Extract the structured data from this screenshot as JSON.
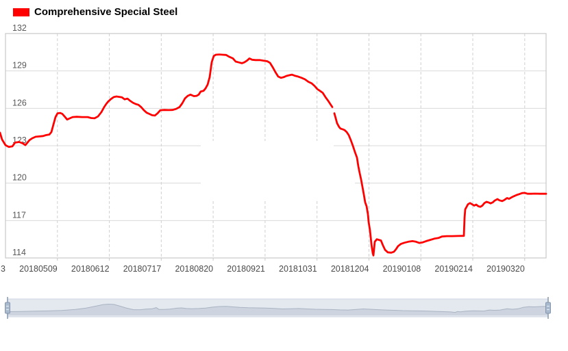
{
  "legend": {
    "label": "Comprehensive Special Steel",
    "marker_color": "#ff0000"
  },
  "colors": {
    "line": "#ff0000",
    "grid_solid": "#d9d9d9",
    "grid_dashed": "#cfcfcf",
    "frame": "#c9c9c9",
    "x_label": "#4a4a4a",
    "y_label": "#5a5a5a",
    "slider_track": "#e4e9f0",
    "slider_track_border": "#ccd5e2",
    "slider_area_fill": "#cdd4df",
    "slider_area_line": "#a9b3c2",
    "slider_handle_fill": "#a9b9ce",
    "slider_handle_border": "#8596ad",
    "slider_handle_slit": "#e8edf4"
  },
  "chart_data": {
    "type": "line",
    "title": "Comprehensive Special Steel",
    "legend_position": "top-left",
    "grid": true,
    "y_axis": {
      "min": 114,
      "max": 132,
      "ticks": [
        132,
        129,
        126,
        123,
        120,
        117,
        114
      ]
    },
    "x_axis": {
      "tick_labels": [
        "3",
        "20180509",
        "20180612",
        "20180717",
        "20180820",
        "20180921",
        "20181031",
        "20181204",
        "20190108",
        "20190214",
        "20190320"
      ],
      "note_first_label_is_clipped": "3"
    },
    "series": [
      {
        "name": "Comprehensive Special Steel",
        "color": "#ff0000",
        "segments": [
          [
            [
              0,
              124.05
            ],
            [
              3,
              123.5
            ],
            [
              8,
              123.05
            ],
            [
              13,
              122.9
            ],
            [
              18,
              122.95
            ],
            [
              22,
              123.25
            ],
            [
              28,
              123.3
            ],
            [
              33,
              123.2
            ],
            [
              37,
              123.05
            ],
            [
              43,
              123.45
            ],
            [
              47,
              123.6
            ],
            [
              52,
              123.72
            ],
            [
              58,
              123.75
            ],
            [
              63,
              123.78
            ],
            [
              67,
              123.85
            ],
            [
              72,
              123.9
            ],
            [
              75,
              124.1
            ],
            [
              78,
              124.7
            ],
            [
              81,
              125.3
            ],
            [
              84,
              125.6
            ],
            [
              88,
              125.63
            ],
            [
              91,
              125.55
            ],
            [
              95,
              125.3
            ],
            [
              98,
              125.1
            ],
            [
              102,
              125.2
            ],
            [
              106,
              125.3
            ],
            [
              112,
              125.32
            ],
            [
              120,
              125.3
            ],
            [
              128,
              125.3
            ],
            [
              133,
              125.22
            ],
            [
              138,
              125.2
            ],
            [
              143,
              125.35
            ],
            [
              148,
              125.7
            ],
            [
              152,
              126.1
            ],
            [
              155,
              126.35
            ],
            [
              158,
              126.55
            ],
            [
              162,
              126.75
            ],
            [
              166,
              126.9
            ],
            [
              170,
              126.95
            ],
            [
              174,
              126.92
            ],
            [
              178,
              126.88
            ],
            [
              182,
              126.72
            ],
            [
              186,
              126.78
            ],
            [
              190,
              126.6
            ],
            [
              194,
              126.45
            ],
            [
              198,
              126.35
            ],
            [
              202,
              126.28
            ],
            [
              206,
              126.1
            ],
            [
              210,
              125.85
            ],
            [
              214,
              125.65
            ],
            [
              218,
              125.55
            ],
            [
              222,
              125.45
            ],
            [
              226,
              125.42
            ],
            [
              230,
              125.6
            ],
            [
              234,
              125.85
            ],
            [
              240,
              125.87
            ],
            [
              246,
              125.86
            ],
            [
              252,
              125.87
            ],
            [
              257,
              125.95
            ],
            [
              262,
              126.1
            ],
            [
              266,
              126.4
            ],
            [
              270,
              126.8
            ],
            [
              274,
              127.0
            ],
            [
              278,
              127.1
            ],
            [
              283,
              126.98
            ],
            [
              287,
              127.0
            ],
            [
              290,
              127.1
            ],
            [
              293,
              127.35
            ],
            [
              297,
              127.4
            ],
            [
              300,
              127.6
            ],
            [
              303,
              127.9
            ],
            [
              306,
              128.5
            ],
            [
              309,
              129.7
            ],
            [
              312,
              130.2
            ],
            [
              315,
              130.3
            ],
            [
              320,
              130.32
            ],
            [
              325,
              130.3
            ],
            [
              330,
              130.28
            ],
            [
              334,
              130.15
            ],
            [
              340,
              130.0
            ],
            [
              344,
              129.75
            ],
            [
              349,
              129.68
            ],
            [
              353,
              129.62
            ],
            [
              357,
              129.7
            ],
            [
              361,
              129.85
            ],
            [
              364,
              130.0
            ],
            [
              368,
              129.9
            ],
            [
              373,
              129.87
            ],
            [
              379,
              129.87
            ],
            [
              385,
              129.82
            ],
            [
              390,
              129.78
            ],
            [
              394,
              129.65
            ],
            [
              398,
              129.3
            ],
            [
              402,
              128.9
            ],
            [
              406,
              128.55
            ],
            [
              410,
              128.45
            ],
            [
              414,
              128.5
            ],
            [
              418,
              128.6
            ],
            [
              422,
              128.65
            ],
            [
              426,
              128.7
            ],
            [
              430,
              128.62
            ],
            [
              435,
              128.55
            ],
            [
              440,
              128.45
            ],
            [
              445,
              128.33
            ],
            [
              450,
              128.13
            ],
            [
              455,
              128.0
            ],
            [
              459,
              127.8
            ],
            [
              463,
              127.55
            ],
            [
              467,
              127.4
            ],
            [
              471,
              127.25
            ],
            [
              475,
              126.9
            ],
            [
              479,
              126.6
            ],
            [
              482,
              126.35
            ],
            [
              485,
              126.1
            ]
          ],
          [
            [
              488,
              125.6
            ],
            [
              490,
              125.2
            ],
            [
              492,
              124.8
            ],
            [
              495,
              124.5
            ],
            [
              497,
              124.38
            ],
            [
              500,
              124.32
            ],
            [
              503,
              124.25
            ],
            [
              506,
              124.1
            ],
            [
              509,
              123.85
            ],
            [
              512,
              123.45
            ],
            [
              515,
              123.0
            ],
            [
              518,
              122.5
            ],
            [
              521,
              122.05
            ],
            [
              523,
              121.35
            ],
            [
              525,
              120.8
            ],
            [
              527,
              120.3
            ],
            [
              529,
              119.7
            ],
            [
              531,
              119.1
            ],
            [
              533,
              118.45
            ],
            [
              535,
              118.15
            ],
            [
              537,
              117.5
            ],
            [
              538,
              116.9
            ],
            [
              540,
              116.2
            ],
            [
              541,
              115.7
            ],
            [
              542,
              115.15
            ],
            [
              543,
              114.75
            ],
            [
              544,
              114.4
            ],
            [
              545,
              114.2
            ],
            [
              547,
              115.3
            ],
            [
              550,
              115.5
            ],
            [
              553,
              115.45
            ],
            [
              556,
              115.4
            ],
            [
              559,
              115.0
            ],
            [
              562,
              114.65
            ],
            [
              566,
              114.45
            ],
            [
              571,
              114.42
            ],
            [
              575,
              114.5
            ],
            [
              578,
              114.7
            ],
            [
              581,
              114.95
            ],
            [
              585,
              115.12
            ],
            [
              590,
              115.22
            ],
            [
              596,
              115.3
            ],
            [
              602,
              115.35
            ],
            [
              607,
              115.3
            ],
            [
              612,
              115.2
            ],
            [
              617,
              115.25
            ],
            [
              622,
              115.35
            ],
            [
              628,
              115.45
            ],
            [
              634,
              115.55
            ],
            [
              640,
              115.6
            ],
            [
              645,
              115.72
            ],
            [
              652,
              115.75
            ],
            [
              660,
              115.75
            ],
            [
              668,
              115.76
            ],
            [
              677,
              115.77
            ],
            [
              678,
              117.2
            ],
            [
              679,
              117.9
            ],
            [
              681,
              118.1
            ],
            [
              683,
              118.3
            ],
            [
              686,
              118.4
            ],
            [
              689,
              118.3
            ],
            [
              692,
              118.2
            ],
            [
              695,
              118.28
            ],
            [
              698,
              118.15
            ],
            [
              701,
              118.1
            ],
            [
              704,
              118.2
            ],
            [
              707,
              118.4
            ],
            [
              710,
              118.5
            ],
            [
              713,
              118.45
            ],
            [
              716,
              118.38
            ],
            [
              719,
              118.45
            ],
            [
              722,
              118.6
            ],
            [
              726,
              118.72
            ],
            [
              729,
              118.62
            ],
            [
              733,
              118.56
            ],
            [
              736,
              118.65
            ],
            [
              740,
              118.8
            ],
            [
              743,
              118.74
            ],
            [
              746,
              118.84
            ],
            [
              750,
              118.95
            ],
            [
              754,
              119.05
            ],
            [
              758,
              119.12
            ],
            [
              762,
              119.2
            ],
            [
              766,
              119.22
            ],
            [
              770,
              119.15
            ],
            [
              775,
              119.15
            ],
            [
              781,
              119.16
            ],
            [
              788,
              119.15
            ],
            [
              797,
              119.15
            ]
          ]
        ]
      }
    ]
  },
  "datazoom": {
    "full_range_selected": true,
    "minimap_profile": [
      [
        8,
        0.25
      ],
      [
        30,
        0.26
      ],
      [
        50,
        0.28
      ],
      [
        70,
        0.3
      ],
      [
        90,
        0.33
      ],
      [
        110,
        0.4
      ],
      [
        125,
        0.48
      ],
      [
        140,
        0.62
      ],
      [
        150,
        0.72
      ],
      [
        158,
        0.75
      ],
      [
        166,
        0.73
      ],
      [
        175,
        0.62
      ],
      [
        185,
        0.48
      ],
      [
        195,
        0.38
      ],
      [
        205,
        0.38
      ],
      [
        213,
        0.42
      ],
      [
        222,
        0.44
      ],
      [
        228,
        0.52
      ],
      [
        232,
        0.4
      ],
      [
        240,
        0.4
      ],
      [
        248,
        0.42
      ],
      [
        258,
        0.48
      ],
      [
        265,
        0.5
      ],
      [
        272,
        0.46
      ],
      [
        280,
        0.44
      ],
      [
        290,
        0.46
      ],
      [
        300,
        0.49
      ],
      [
        310,
        0.55
      ],
      [
        320,
        0.59
      ],
      [
        330,
        0.6
      ],
      [
        340,
        0.57
      ],
      [
        350,
        0.53
      ],
      [
        362,
        0.51
      ],
      [
        375,
        0.5
      ],
      [
        388,
        0.49
      ],
      [
        400,
        0.47
      ],
      [
        412,
        0.43
      ],
      [
        424,
        0.44
      ],
      [
        436,
        0.46
      ],
      [
        448,
        0.43
      ],
      [
        460,
        0.41
      ],
      [
        472,
        0.4
      ],
      [
        484,
        0.39
      ],
      [
        496,
        0.37
      ],
      [
        508,
        0.36
      ],
      [
        520,
        0.4
      ],
      [
        530,
        0.43
      ],
      [
        540,
        0.41
      ],
      [
        552,
        0.38
      ],
      [
        564,
        0.36
      ],
      [
        576,
        0.34
      ],
      [
        588,
        0.32
      ],
      [
        600,
        0.31
      ],
      [
        612,
        0.3
      ],
      [
        624,
        0.29
      ],
      [
        636,
        0.27
      ],
      [
        648,
        0.25
      ],
      [
        658,
        0.23
      ],
      [
        664,
        0.2
      ],
      [
        668,
        0.26
      ],
      [
        672,
        0.24
      ],
      [
        680,
        0.28
      ],
      [
        690,
        0.31
      ],
      [
        698,
        0.3
      ],
      [
        706,
        0.29
      ],
      [
        714,
        0.36
      ],
      [
        722,
        0.34
      ],
      [
        730,
        0.36
      ],
      [
        740,
        0.44
      ],
      [
        748,
        0.41
      ],
      [
        756,
        0.44
      ],
      [
        764,
        0.54
      ],
      [
        772,
        0.58
      ],
      [
        780,
        0.57
      ],
      [
        790,
        0.59
      ],
      [
        800,
        0.6
      ]
    ]
  }
}
